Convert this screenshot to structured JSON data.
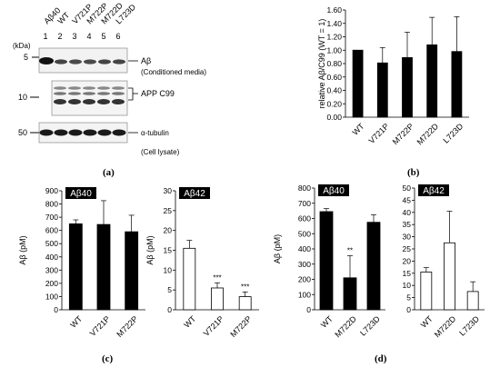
{
  "blot": {
    "lane_labels": [
      "Aβ40",
      "WT",
      "V721P",
      "M722P",
      "M722D",
      "L723D"
    ],
    "lane_numbers": [
      "1",
      "2",
      "3",
      "4",
      "5",
      "6"
    ],
    "kda_label": "(kDa)",
    "markers": [
      "5",
      "10",
      "50"
    ],
    "band_labels": [
      "Aβ",
      "(Conditioned media)",
      "APP C99",
      "α-tubulin",
      "(Cell lysate)"
    ]
  },
  "panel_labels": [
    "(a)",
    "(b)",
    "(c)",
    "(d)"
  ],
  "chart_data": [
    {
      "id": "b",
      "type": "bar",
      "categories": [
        "WT",
        "V721P",
        "M722P",
        "M722D",
        "L723D"
      ],
      "values": [
        1.0,
        0.81,
        0.89,
        1.08,
        0.98
      ],
      "errors": [
        0,
        0.23,
        0.38,
        0.41,
        0.52
      ],
      "ylabel": "relative Aβ/C99 (WT = 1)",
      "ylim": [
        0,
        1.6
      ],
      "yticks": [
        "0.00",
        "0.20",
        "0.40",
        "0.60",
        "0.80",
        "1.00",
        "1.20",
        "1.40",
        "1.60"
      ],
      "fill": "#000000"
    },
    {
      "id": "c1",
      "type": "bar",
      "title": "Aβ40",
      "categories": [
        "WT",
        "V721P",
        "M722P"
      ],
      "values": [
        650,
        645,
        590
      ],
      "errors": [
        30,
        180,
        125
      ],
      "ylabel": "Aβ (pM)",
      "ylim": [
        0,
        900
      ],
      "yticks": [
        "0",
        "100",
        "200",
        "300",
        "400",
        "500",
        "600",
        "700",
        "800",
        "900"
      ],
      "significance": [
        "",
        "",
        ""
      ],
      "fill": "#000000"
    },
    {
      "id": "c2",
      "type": "bar",
      "title": "Aβ42",
      "categories": [
        "WT",
        "V721P",
        "M722P"
      ],
      "values": [
        15.5,
        5.5,
        3.3
      ],
      "errors": [
        2.0,
        1.3,
        1.2
      ],
      "ylabel": "Aβ (pM)",
      "ylim": [
        0,
        30
      ],
      "yticks": [
        "0",
        "5",
        "10",
        "15",
        "20",
        "25",
        "30"
      ],
      "significance": [
        "",
        "***",
        "***"
      ],
      "fill": "#ffffff"
    },
    {
      "id": "d1",
      "type": "bar",
      "title": "Aβ40",
      "categories": [
        "WT",
        "M722D",
        "L723D"
      ],
      "values": [
        645,
        210,
        575
      ],
      "errors": [
        20,
        145,
        50
      ],
      "ylabel": "Aβ (pM)",
      "ylim": [
        0,
        800
      ],
      "yticks": [
        "0",
        "100",
        "200",
        "300",
        "400",
        "500",
        "600",
        "700",
        "800"
      ],
      "significance": [
        "",
        "**",
        ""
      ],
      "fill": "#000000"
    },
    {
      "id": "d2",
      "type": "bar",
      "title": "Aβ42",
      "categories": [
        "WT",
        "M722D",
        "L723D"
      ],
      "values": [
        15.5,
        27.5,
        7.5
      ],
      "errors": [
        1.8,
        13.0,
        4.0
      ],
      "ylabel": "",
      "ylim": [
        0,
        50
      ],
      "yticks": [
        "0",
        "5",
        "10",
        "15",
        "20",
        "25",
        "30",
        "35",
        "40",
        "45",
        "50"
      ],
      "significance": [
        "",
        "",
        ""
      ],
      "fill": "#ffffff"
    }
  ]
}
